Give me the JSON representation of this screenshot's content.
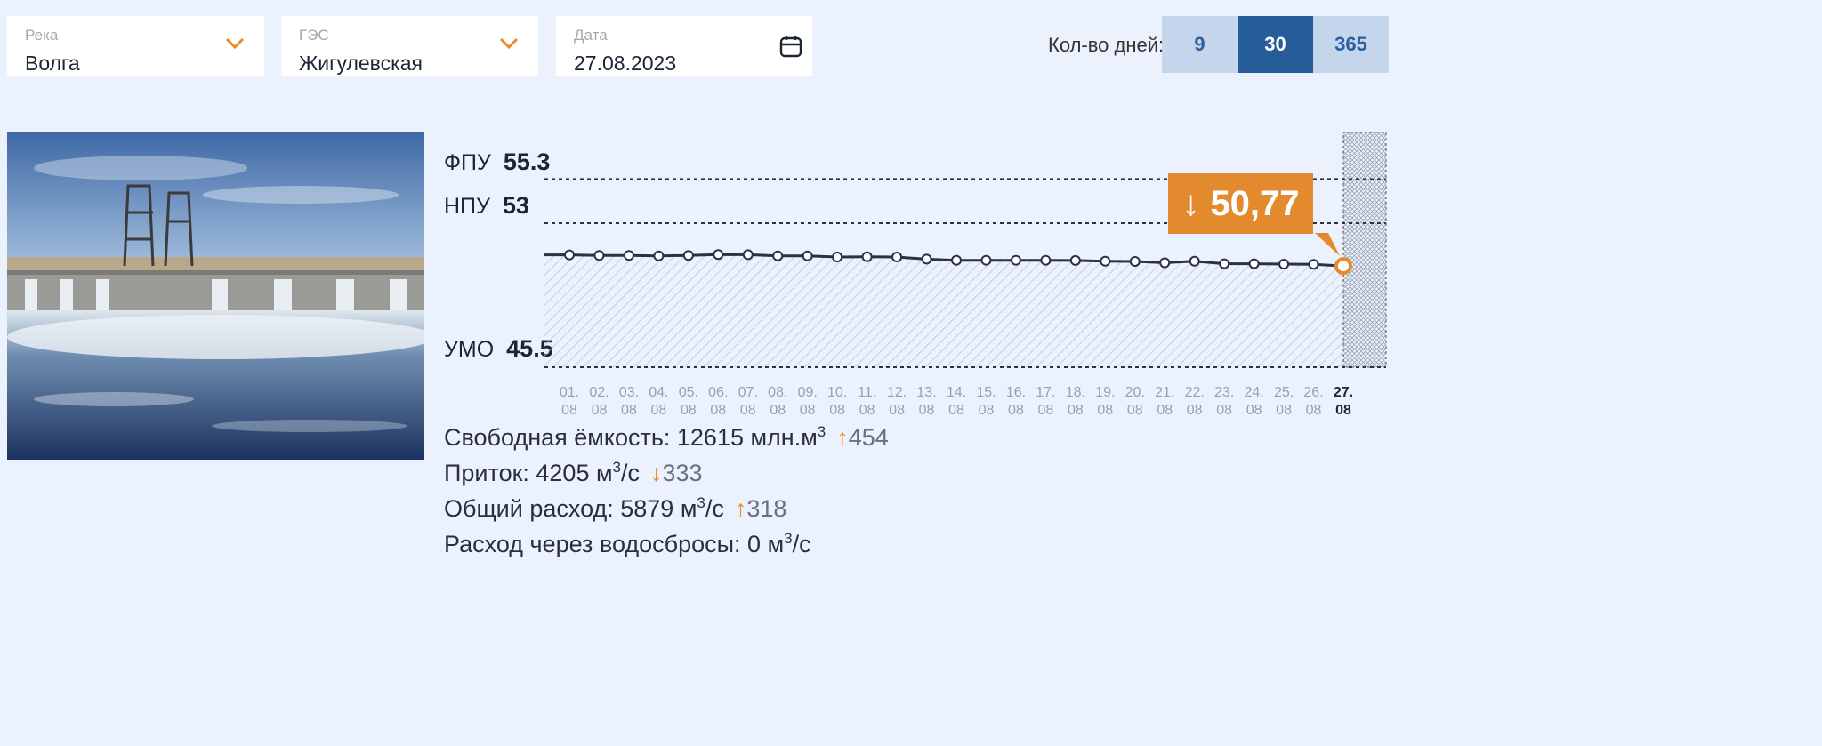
{
  "filters": {
    "river": {
      "label": "Река",
      "value": "Волга",
      "icon": "chevron-down-icon"
    },
    "station": {
      "label": "ГЭС",
      "value": "Жигулевская",
      "icon": "chevron-down-icon"
    },
    "date": {
      "label": "Дата",
      "value": "27.08.2023",
      "icon": "calendar-icon"
    }
  },
  "days": {
    "label": "Кол-во дней:",
    "options": [
      "9",
      "30",
      "365"
    ],
    "selected": "30"
  },
  "levels": {
    "fpu": {
      "label": "ФПУ",
      "value": "55.3"
    },
    "npu": {
      "label": "НПУ",
      "value": "53"
    },
    "umo": {
      "label": "УМО",
      "value": "45.5"
    }
  },
  "current": {
    "arrow": "↓",
    "value": "50,77"
  },
  "chart_data": {
    "type": "line",
    "x": [
      "01.08",
      "02.08",
      "03.08",
      "04.08",
      "05.08",
      "06.08",
      "07.08",
      "08.08",
      "09.08",
      "10.08",
      "11.08",
      "12.08",
      "13.08",
      "14.08",
      "15.08",
      "16.08",
      "17.08",
      "18.08",
      "19.08",
      "20.08",
      "21.08",
      "22.08",
      "23.08",
      "24.08",
      "25.08",
      "26.08",
      "27.08"
    ],
    "x_ticks": [
      [
        "01.",
        "08"
      ],
      [
        "02.",
        "08"
      ],
      [
        "03.",
        "08"
      ],
      [
        "04.",
        "08"
      ],
      [
        "05.",
        "08"
      ],
      [
        "06.",
        "08"
      ],
      [
        "07.",
        "08"
      ],
      [
        "08.",
        "08"
      ],
      [
        "09.",
        "08"
      ],
      [
        "10.",
        "08"
      ],
      [
        "11.",
        "08"
      ],
      [
        "12.",
        "08"
      ],
      [
        "13.",
        "08"
      ],
      [
        "14.",
        "08"
      ],
      [
        "15.",
        "08"
      ],
      [
        "16.",
        "08"
      ],
      [
        "17.",
        "08"
      ],
      [
        "18.",
        "08"
      ],
      [
        "19.",
        "08"
      ],
      [
        "20.",
        "08"
      ],
      [
        "21.",
        "08"
      ],
      [
        "22.",
        "08"
      ],
      [
        "23.",
        "08"
      ],
      [
        "24.",
        "08"
      ],
      [
        "25.",
        "08"
      ],
      [
        "26.",
        "08"
      ],
      [
        "27.",
        "08"
      ]
    ],
    "values": [
      51.35,
      51.32,
      51.32,
      51.3,
      51.32,
      51.37,
      51.36,
      51.3,
      51.3,
      51.24,
      51.25,
      51.24,
      51.13,
      51.07,
      51.07,
      51.07,
      51.07,
      51.06,
      51.02,
      51.01,
      50.94,
      51.02,
      50.89,
      50.89,
      50.87,
      50.86,
      50.77
    ],
    "ylim": [
      45.5,
      55.3
    ],
    "reference_lines": [
      55.3,
      53,
      45.5
    ],
    "colors": {
      "line": "#2a3142",
      "highlight": "#e38a2e",
      "hatch": "#b9c2d6"
    }
  },
  "stats": [
    {
      "text": "Свободная ёмкость: 12615 млн.м",
      "sup": "3",
      "tail": "",
      "arrow": "↑",
      "delta": "454"
    },
    {
      "text": "Приток: 4205 м",
      "sup": "3",
      "tail": "/с",
      "arrow": "↓",
      "delta": "333"
    },
    {
      "text": "Общий расход: 5879 м",
      "sup": "3",
      "tail": "/с",
      "arrow": "↑",
      "delta": "318"
    },
    {
      "text": "Расход через водосбросы: 0 м",
      "sup": "3",
      "tail": "/с",
      "arrow": "",
      "delta": ""
    }
  ]
}
